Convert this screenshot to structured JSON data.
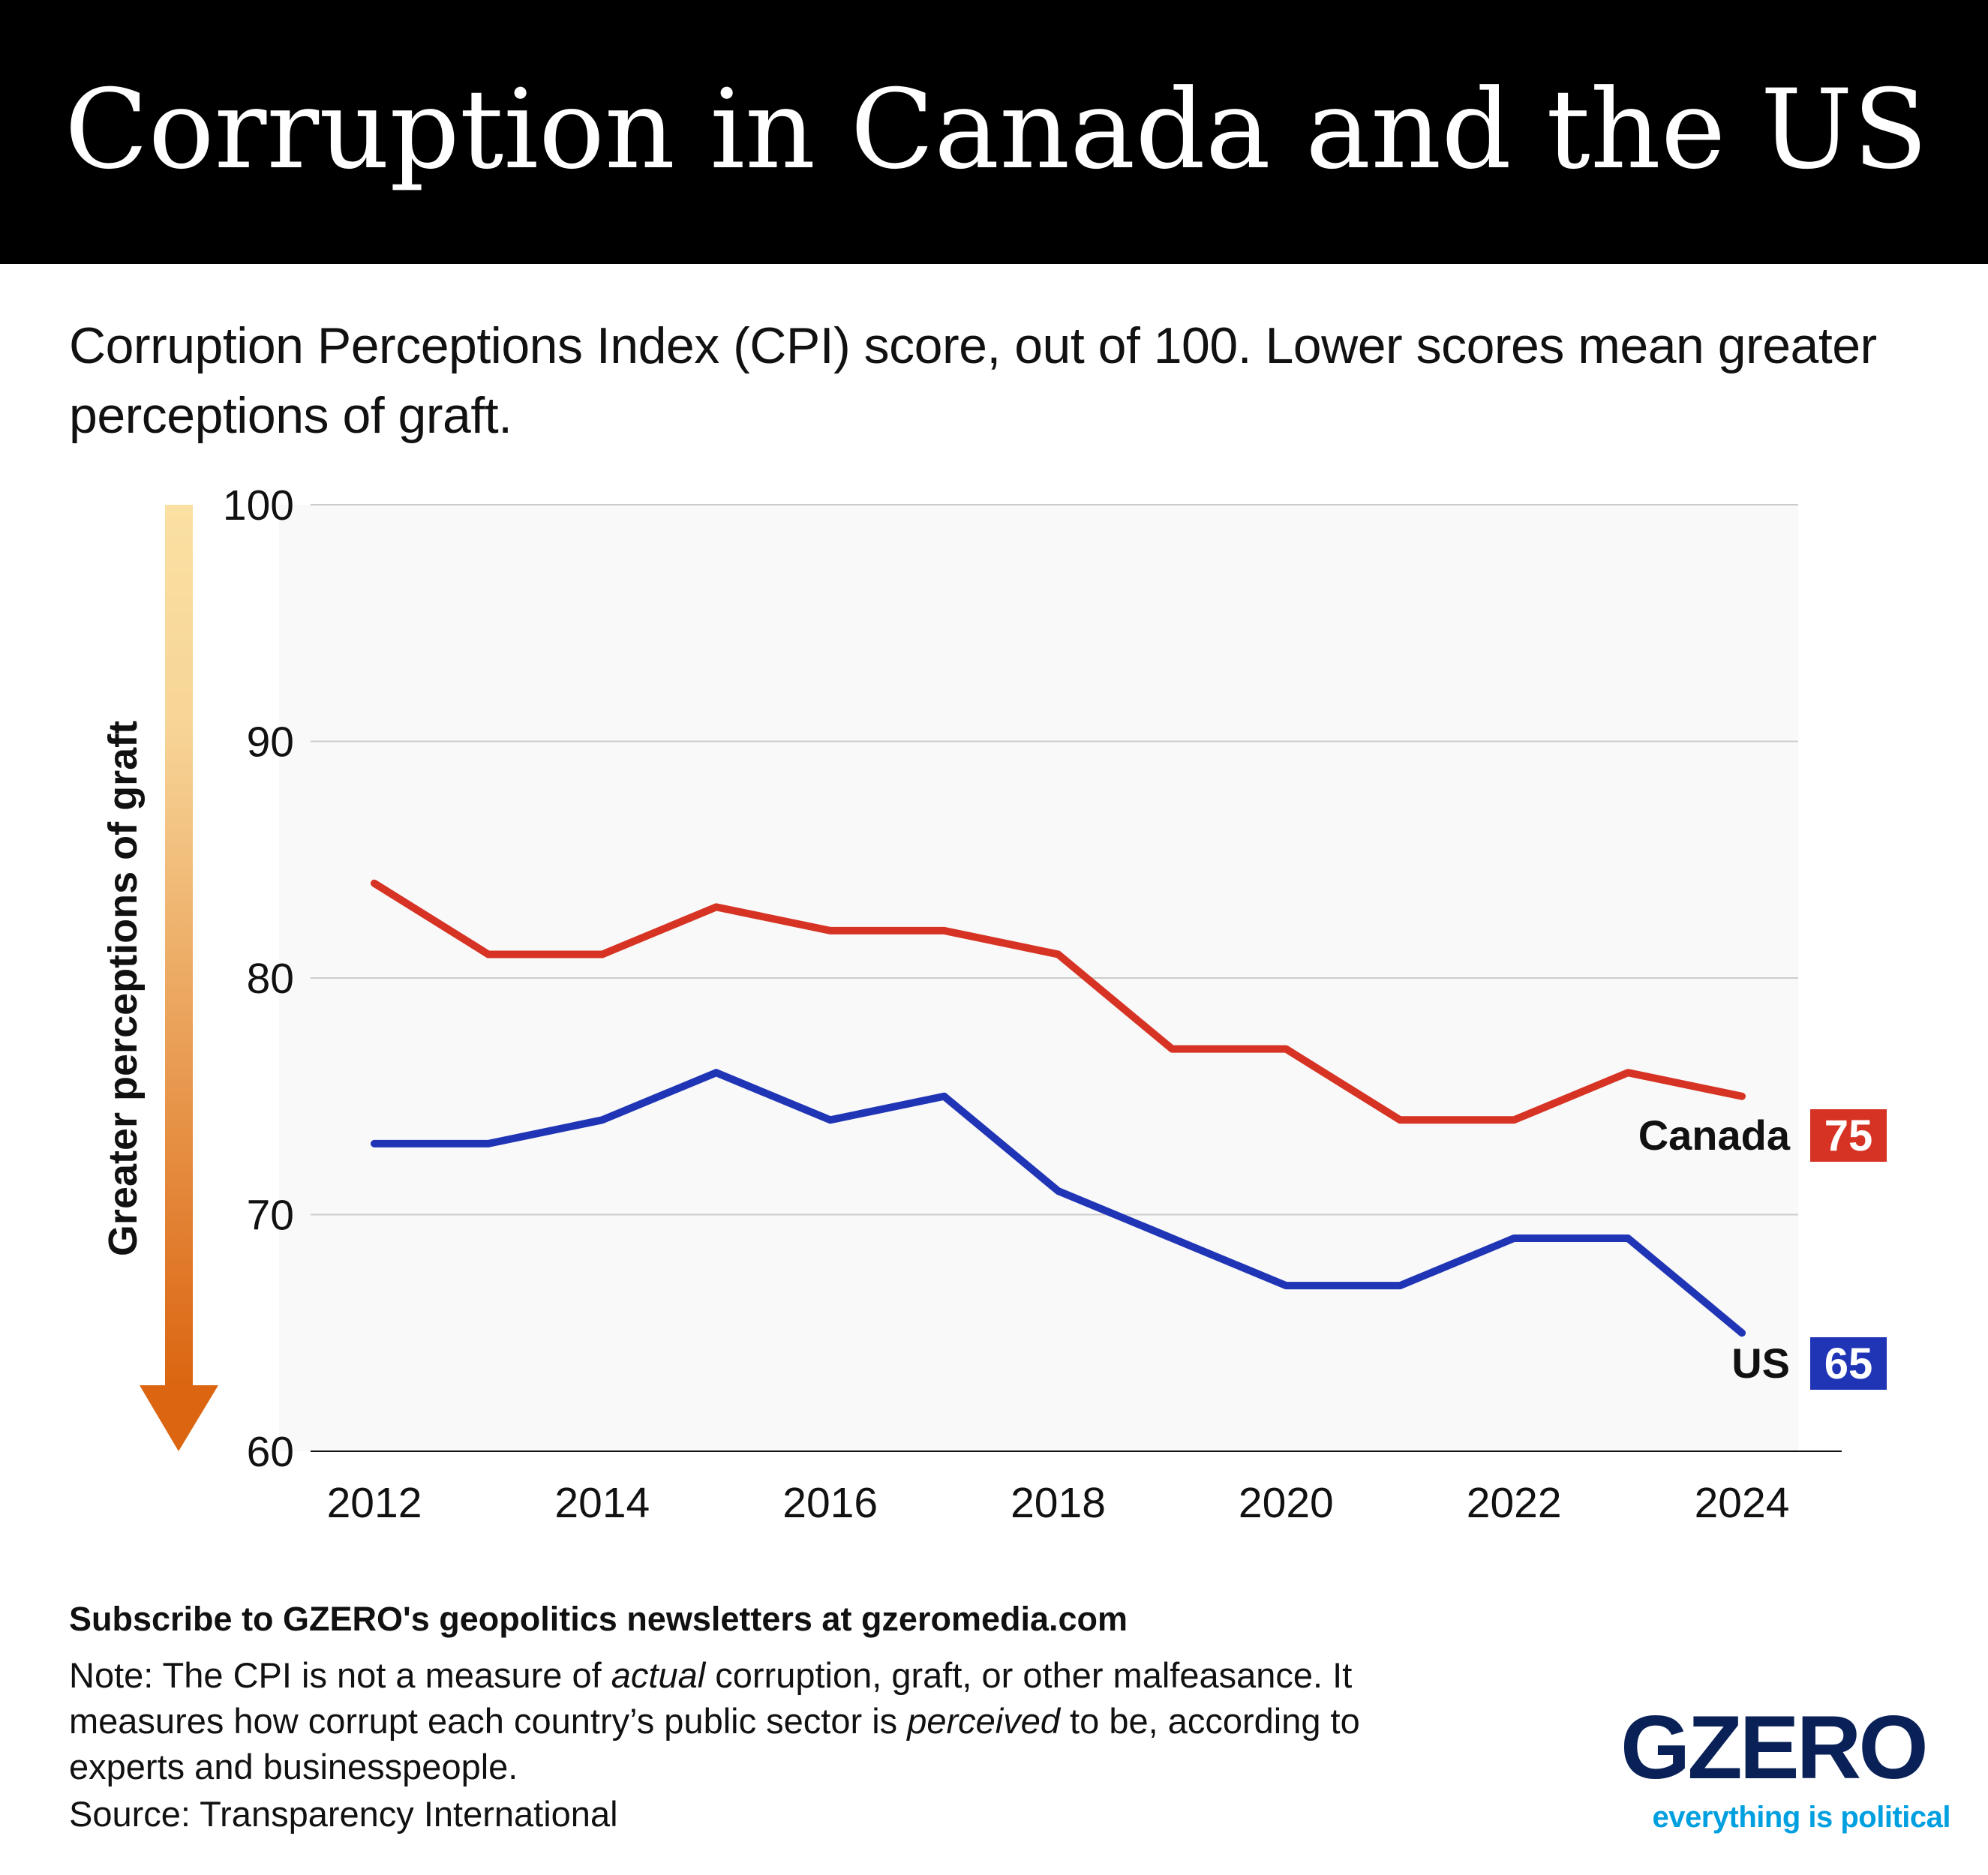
{
  "title": "Corruption in Canada and the US",
  "subtitle": "Corruption Perceptions Index (CPI) score, out of 100. Lower scores mean greater perceptions of graft.",
  "chart_data": {
    "type": "line",
    "x": [
      2012,
      2013,
      2014,
      2015,
      2016,
      2017,
      2018,
      2019,
      2020,
      2021,
      2022,
      2023,
      2024
    ],
    "x_ticks": [
      "2012",
      "2014",
      "2016",
      "2018",
      "2020",
      "2022",
      "2024"
    ],
    "y_ticks": [
      "60",
      "70",
      "80",
      "90",
      "100"
    ],
    "ylim": [
      60,
      100
    ],
    "ylabel": "Greater perceptions of graft",
    "grid": true,
    "series": [
      {
        "name": "Canada",
        "color": "#d63324",
        "end_label": "75",
        "values": [
          84,
          81,
          81,
          83,
          82,
          82,
          81,
          77,
          77,
          74,
          74,
          76,
          75
        ]
      },
      {
        "name": "US",
        "color": "#1f35b5",
        "end_label": "65",
        "values": [
          73,
          73,
          74,
          76,
          74,
          75,
          71,
          69,
          67,
          67,
          69,
          69,
          65
        ]
      }
    ]
  },
  "footer": {
    "subscribe": "Subscribe to GZERO's geopolitics newsletters at gzeromedia.com",
    "note_line1_a": "Note: The CPI is not a measure of ",
    "note_line1_em": "actual",
    "note_line1_b": " corruption, graft, or other malfeasance. It",
    "note_line2_a": "measures how corrupt each country’s public sector is ",
    "note_line2_em": "perceived",
    "note_line2_b": " to be, according to",
    "note_line3": "experts and businesspeople.",
    "source": "Source: Transparency International"
  },
  "logo": {
    "name": "GZERO",
    "tagline": "everything is political",
    "color": "#0a2158",
    "tagline_color": "#00a0e0"
  }
}
